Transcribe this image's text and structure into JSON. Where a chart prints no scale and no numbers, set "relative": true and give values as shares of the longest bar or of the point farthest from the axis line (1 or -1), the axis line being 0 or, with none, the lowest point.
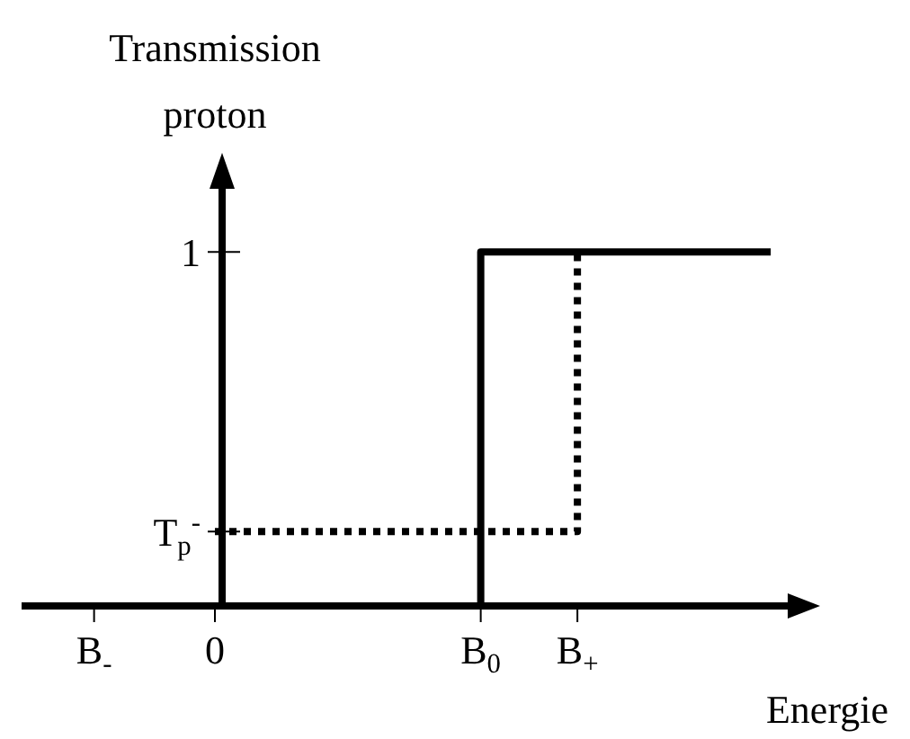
{
  "chart_data": {
    "type": "step",
    "ylabel": "Transmission proton",
    "xlabel": "Energie",
    "relative": true,
    "marker": "none",
    "categories": [
      null,
      null,
      null,
      "B$_{-}$",
      null,
      null,
      null,
      null,
      "0",
      null,
      null,
      null,
      null,
      null,
      null,
      null,
      null,
      null,
      null,
      "B$_{0}$",
      null,
      null,
      null,
      "B$_{+}$",
      null,
      null,
      null,
      null,
      null,
      null,
      null,
      null,
      null
    ],
    "annotations": [
      "1",
      "T$_{p}$$^{-}$"
    ],
    "series": [
      {
        "color": "#000000",
        "line_style": "solid",
        "values": [
          null,
          null,
          null,
          null,
          null,
          null,
          null,
          null,
          0,
          0,
          0,
          0,
          0,
          0,
          0,
          0,
          0,
          0,
          0,
          1,
          1,
          1,
          1,
          1,
          1,
          1,
          1,
          1,
          1,
          1,
          1,
          1,
          null
        ]
      },
      {
        "color": "#000000",
        "line_style": "dotted",
        "values": [
          null,
          null,
          null,
          null,
          null,
          null,
          null,
          null,
          0.21,
          0.21,
          0.21,
          0.21,
          0.21,
          0.21,
          0.21,
          0.21,
          0.21,
          0.21,
          0.21,
          0.21,
          0.21,
          0.21,
          0.21,
          1,
          null,
          null,
          null,
          null,
          null,
          null,
          null,
          null,
          null
        ]
      }
    ]
  }
}
